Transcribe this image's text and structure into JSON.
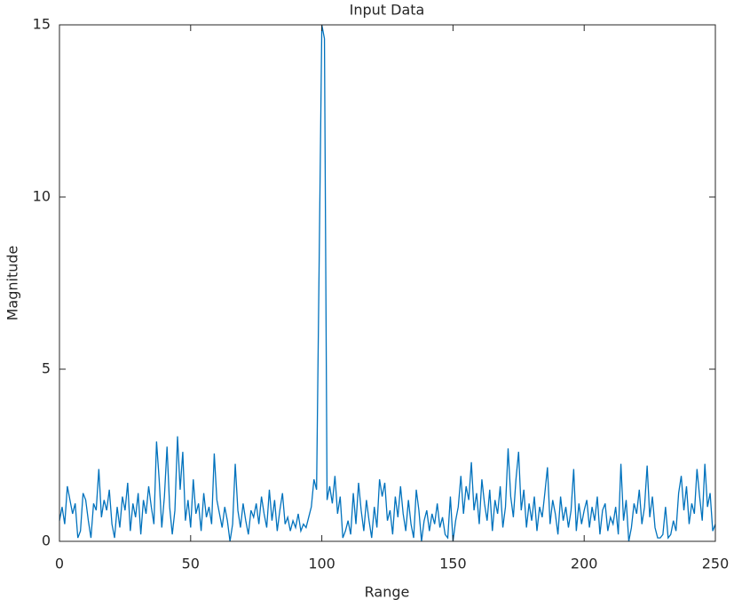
{
  "chart_data": {
    "type": "line",
    "title": "Input Data",
    "xlabel": "Range",
    "ylabel": "Magnitude",
    "color": "#0072bd",
    "grid": false,
    "xlim": [
      0,
      250
    ],
    "ylim": [
      0,
      15
    ],
    "xticks": [
      0,
      50,
      100,
      150,
      200,
      250
    ],
    "yticks": [
      0,
      5,
      10,
      15
    ],
    "x": [
      0,
      1,
      2,
      3,
      4,
      5,
      6,
      7,
      8,
      9,
      10,
      11,
      12,
      13,
      14,
      15,
      16,
      17,
      18,
      19,
      20,
      21,
      22,
      23,
      24,
      25,
      26,
      27,
      28,
      29,
      30,
      31,
      32,
      33,
      34,
      35,
      36,
      37,
      38,
      39,
      40,
      41,
      42,
      43,
      44,
      45,
      46,
      47,
      48,
      49,
      50,
      51,
      52,
      53,
      54,
      55,
      56,
      57,
      58,
      59,
      60,
      61,
      62,
      63,
      64,
      65,
      66,
      67,
      68,
      69,
      70,
      71,
      72,
      73,
      74,
      75,
      76,
      77,
      78,
      79,
      80,
      81,
      82,
      83,
      84,
      85,
      86,
      87,
      88,
      89,
      90,
      91,
      92,
      93,
      94,
      95,
      96,
      97,
      98,
      99,
      100,
      101,
      102,
      103,
      104,
      105,
      106,
      107,
      108,
      109,
      110,
      111,
      112,
      113,
      114,
      115,
      116,
      117,
      118,
      119,
      120,
      121,
      122,
      123,
      124,
      125,
      126,
      127,
      128,
      129,
      130,
      131,
      132,
      133,
      134,
      135,
      136,
      137,
      138,
      139,
      140,
      141,
      142,
      143,
      144,
      145,
      146,
      147,
      148,
      149,
      150,
      151,
      152,
      153,
      154,
      155,
      156,
      157,
      158,
      159,
      160,
      161,
      162,
      163,
      164,
      165,
      166,
      167,
      168,
      169,
      170,
      171,
      172,
      173,
      174,
      175,
      176,
      177,
      178,
      179,
      180,
      181,
      182,
      183,
      184,
      185,
      186,
      187,
      188,
      189,
      190,
      191,
      192,
      193,
      194,
      195,
      196,
      197,
      198,
      199,
      200,
      201,
      202,
      203,
      204,
      205,
      206,
      207,
      208,
      209,
      210,
      211,
      212,
      213,
      214,
      215,
      216,
      217,
      218,
      219,
      220,
      221,
      222,
      223,
      224,
      225,
      226,
      227,
      228,
      229,
      230,
      231,
      232,
      233,
      234,
      235,
      236,
      237,
      238,
      239,
      240,
      241,
      242,
      243,
      244,
      245,
      246,
      247,
      248,
      249,
      250
    ],
    "values": [
      0.6,
      1.0,
      0.5,
      1.6,
      1.2,
      0.8,
      1.1,
      0.1,
      0.3,
      1.4,
      1.2,
      0.6,
      0.1,
      1.1,
      0.9,
      2.1,
      0.7,
      1.2,
      0.9,
      1.5,
      0.5,
      0.1,
      1.0,
      0.4,
      1.3,
      0.9,
      1.7,
      0.3,
      1.1,
      0.7,
      1.4,
      0.2,
      1.2,
      0.8,
      1.6,
      1.0,
      0.5,
      2.9,
      1.8,
      0.4,
      1.3,
      2.75,
      1.0,
      0.2,
      0.9,
      3.05,
      1.5,
      2.6,
      0.6,
      1.2,
      0.4,
      1.8,
      0.8,
      1.1,
      0.3,
      1.4,
      0.7,
      1.0,
      0.5,
      2.55,
      1.2,
      0.8,
      0.4,
      1.0,
      0.6,
      0.0,
      0.5,
      2.25,
      0.9,
      0.4,
      1.1,
      0.6,
      0.2,
      0.9,
      0.7,
      1.1,
      0.5,
      1.3,
      0.8,
      0.4,
      1.5,
      0.6,
      1.2,
      0.3,
      0.9,
      1.4,
      0.5,
      0.7,
      0.3,
      0.6,
      0.4,
      0.8,
      0.3,
      0.5,
      0.4,
      0.7,
      1.0,
      1.8,
      1.5,
      8.2,
      15,
      14.6,
      1.2,
      1.6,
      1.1,
      1.9,
      0.8,
      1.3,
      0.1,
      0.3,
      0.6,
      0.2,
      1.4,
      0.5,
      1.7,
      0.9,
      0.3,
      1.2,
      0.6,
      0.1,
      1.0,
      0.4,
      1.8,
      1.3,
      1.7,
      0.6,
      0.9,
      0.2,
      1.3,
      0.7,
      1.6,
      0.8,
      0.3,
      1.2,
      0.5,
      0.1,
      1.5,
      0.9,
      0.0,
      0.6,
      0.9,
      0.3,
      0.8,
      0.5,
      1.1,
      0.4,
      0.7,
      0.2,
      0.1,
      1.3,
      0.0,
      0.6,
      1.0,
      1.9,
      0.8,
      1.6,
      1.2,
      2.3,
      0.9,
      1.4,
      0.5,
      1.8,
      1.1,
      0.6,
      1.5,
      0.3,
      1.2,
      0.8,
      1.6,
      0.4,
      1.0,
      2.7,
      1.3,
      0.7,
      1.8,
      2.6,
      0.9,
      1.5,
      0.4,
      1.1,
      0.6,
      1.3,
      0.3,
      1.0,
      0.7,
      1.4,
      2.15,
      0.5,
      1.2,
      0.8,
      0.2,
      1.3,
      0.6,
      1.0,
      0.4,
      0.9,
      2.1,
      0.3,
      1.1,
      0.5,
      0.9,
      1.2,
      0.4,
      1.0,
      0.6,
      1.3,
      0.2,
      0.9,
      1.1,
      0.3,
      0.7,
      0.5,
      1.0,
      0.2,
      2.25,
      0.6,
      1.2,
      0.0,
      0.4,
      1.1,
      0.8,
      1.5,
      0.5,
      1.0,
      2.2,
      0.7,
      1.3,
      0.4,
      0.1,
      0.1,
      0.2,
      1.0,
      0.1,
      0.2,
      0.6,
      0.3,
      1.4,
      1.9,
      0.9,
      1.6,
      0.5,
      1.1,
      0.8,
      2.1,
      1.3,
      0.6,
      2.25,
      1.0,
      1.4,
      0.3,
      0.5
    ]
  }
}
